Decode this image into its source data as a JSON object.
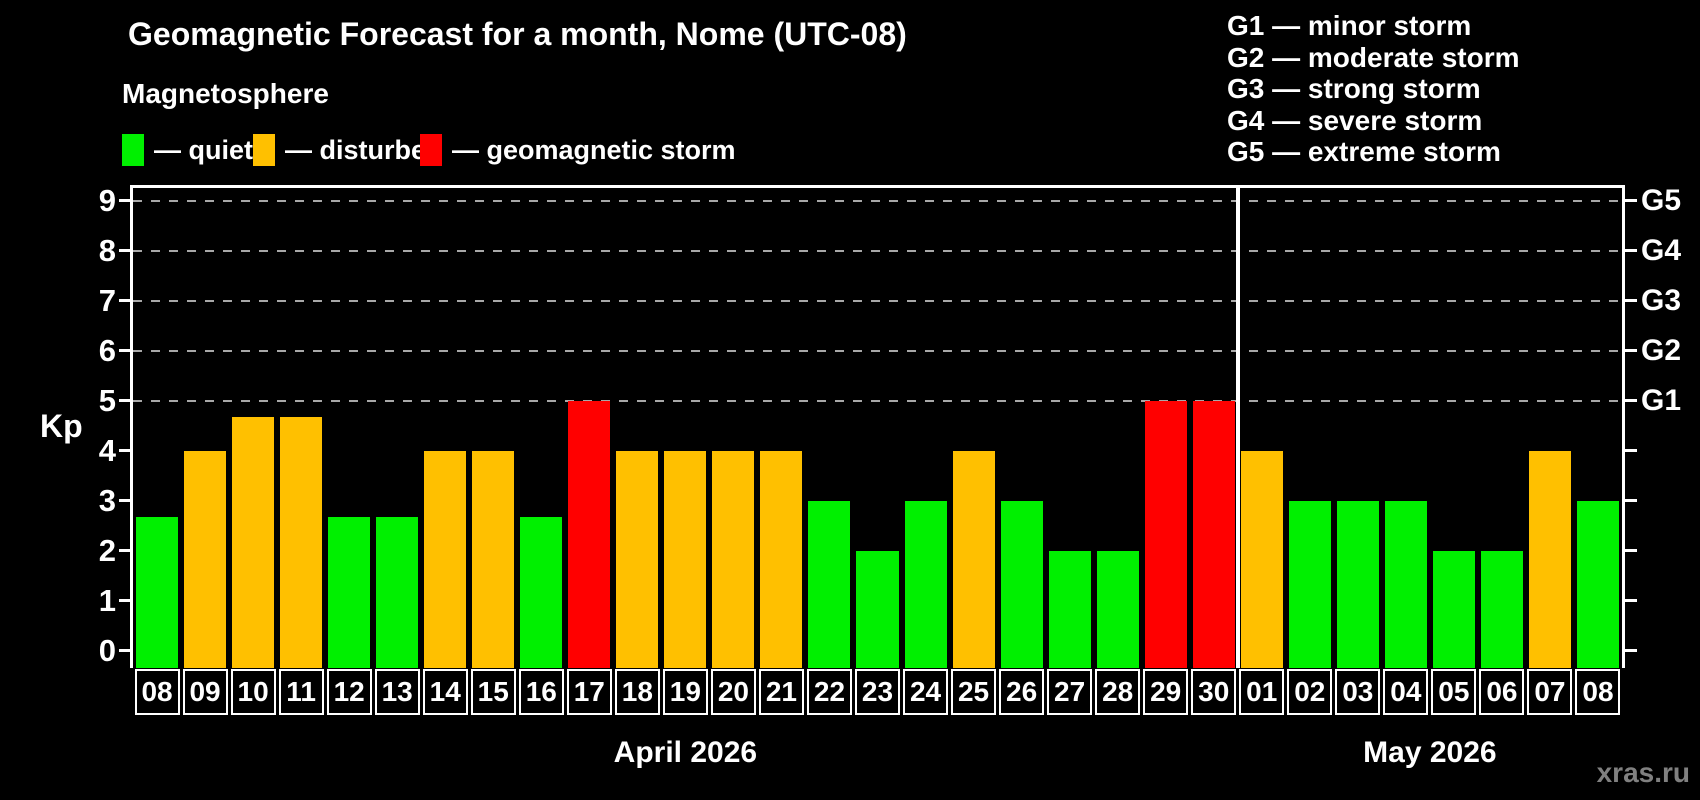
{
  "title": "Geomagnetic Forecast for a month, Nome (UTC-08)",
  "subtitle": "Magnetosphere",
  "legend": {
    "items": [
      {
        "label": "— quiet",
        "status": "quiet"
      },
      {
        "label": "— disturbed",
        "status": "disturbed"
      },
      {
        "label": "— geomagnetic storm",
        "status": "storm"
      }
    ]
  },
  "storm_scale_legend": [
    "G1 — minor storm",
    "G2 — moderate storm",
    "G3 — strong storm",
    "G4 — severe storm",
    "G5 — extreme storm"
  ],
  "colors": {
    "quiet": "#00f000",
    "disturbed": "#ffc000",
    "storm": "#ff0000",
    "axis": "#ffffff",
    "grid": "#a8a8a8",
    "watermark": "#808080",
    "background": "#000000"
  },
  "watermark": "xras.ru",
  "chart_data": {
    "type": "bar",
    "ylabel": "Kp",
    "yticks": [
      0,
      1,
      2,
      3,
      4,
      5,
      6,
      7,
      8,
      9
    ],
    "ylim": [
      -0.35,
      9.25
    ],
    "grid": "dashed horizontal at Kp 5-9 only",
    "gridlines_at": [
      5,
      6,
      7,
      8,
      9
    ],
    "right_axis_labels": [
      {
        "kp": 5,
        "label": "G1"
      },
      {
        "kp": 6,
        "label": "G2"
      },
      {
        "kp": 7,
        "label": "G3"
      },
      {
        "kp": 8,
        "label": "G4"
      },
      {
        "kp": 9,
        "label": "G5"
      }
    ],
    "months": [
      {
        "label": "April 2026",
        "days": 23
      },
      {
        "label": "May 2026",
        "days": 8
      }
    ],
    "bars": [
      {
        "date": "08",
        "month": "April 2026",
        "kp": 2.67,
        "status": "quiet"
      },
      {
        "date": "09",
        "month": "April 2026",
        "kp": 4.0,
        "status": "disturbed"
      },
      {
        "date": "10",
        "month": "April 2026",
        "kp": 4.67,
        "status": "disturbed"
      },
      {
        "date": "11",
        "month": "April 2026",
        "kp": 4.67,
        "status": "disturbed"
      },
      {
        "date": "12",
        "month": "April 2026",
        "kp": 2.67,
        "status": "quiet"
      },
      {
        "date": "13",
        "month": "April 2026",
        "kp": 2.67,
        "status": "quiet"
      },
      {
        "date": "14",
        "month": "April 2026",
        "kp": 4.0,
        "status": "disturbed"
      },
      {
        "date": "15",
        "month": "April 2026",
        "kp": 4.0,
        "status": "disturbed"
      },
      {
        "date": "16",
        "month": "April 2026",
        "kp": 2.67,
        "status": "quiet"
      },
      {
        "date": "17",
        "month": "April 2026",
        "kp": 5.0,
        "status": "storm"
      },
      {
        "date": "18",
        "month": "April 2026",
        "kp": 4.0,
        "status": "disturbed"
      },
      {
        "date": "19",
        "month": "April 2026",
        "kp": 4.0,
        "status": "disturbed"
      },
      {
        "date": "20",
        "month": "April 2026",
        "kp": 4.0,
        "status": "disturbed"
      },
      {
        "date": "21",
        "month": "April 2026",
        "kp": 4.0,
        "status": "disturbed"
      },
      {
        "date": "22",
        "month": "April 2026",
        "kp": 3.0,
        "status": "quiet"
      },
      {
        "date": "23",
        "month": "April 2026",
        "kp": 2.0,
        "status": "quiet"
      },
      {
        "date": "24",
        "month": "April 2026",
        "kp": 3.0,
        "status": "quiet"
      },
      {
        "date": "25",
        "month": "April 2026",
        "kp": 4.0,
        "status": "disturbed"
      },
      {
        "date": "26",
        "month": "April 2026",
        "kp": 3.0,
        "status": "quiet"
      },
      {
        "date": "27",
        "month": "April 2026",
        "kp": 2.0,
        "status": "quiet"
      },
      {
        "date": "28",
        "month": "April 2026",
        "kp": 2.0,
        "status": "quiet"
      },
      {
        "date": "29",
        "month": "April 2026",
        "kp": 5.0,
        "status": "storm"
      },
      {
        "date": "30",
        "month": "April 2026",
        "kp": 5.0,
        "status": "storm"
      },
      {
        "date": "01",
        "month": "May 2026",
        "kp": 4.0,
        "status": "disturbed"
      },
      {
        "date": "02",
        "month": "May 2026",
        "kp": 3.0,
        "status": "quiet"
      },
      {
        "date": "03",
        "month": "May 2026",
        "kp": 3.0,
        "status": "quiet"
      },
      {
        "date": "04",
        "month": "May 2026",
        "kp": 3.0,
        "status": "quiet"
      },
      {
        "date": "05",
        "month": "May 2026",
        "kp": 2.0,
        "status": "quiet"
      },
      {
        "date": "06",
        "month": "May 2026",
        "kp": 2.0,
        "status": "quiet"
      },
      {
        "date": "07",
        "month": "May 2026",
        "kp": 4.0,
        "status": "disturbed"
      },
      {
        "date": "08",
        "month": "May 2026",
        "kp": 3.0,
        "status": "quiet"
      }
    ]
  }
}
